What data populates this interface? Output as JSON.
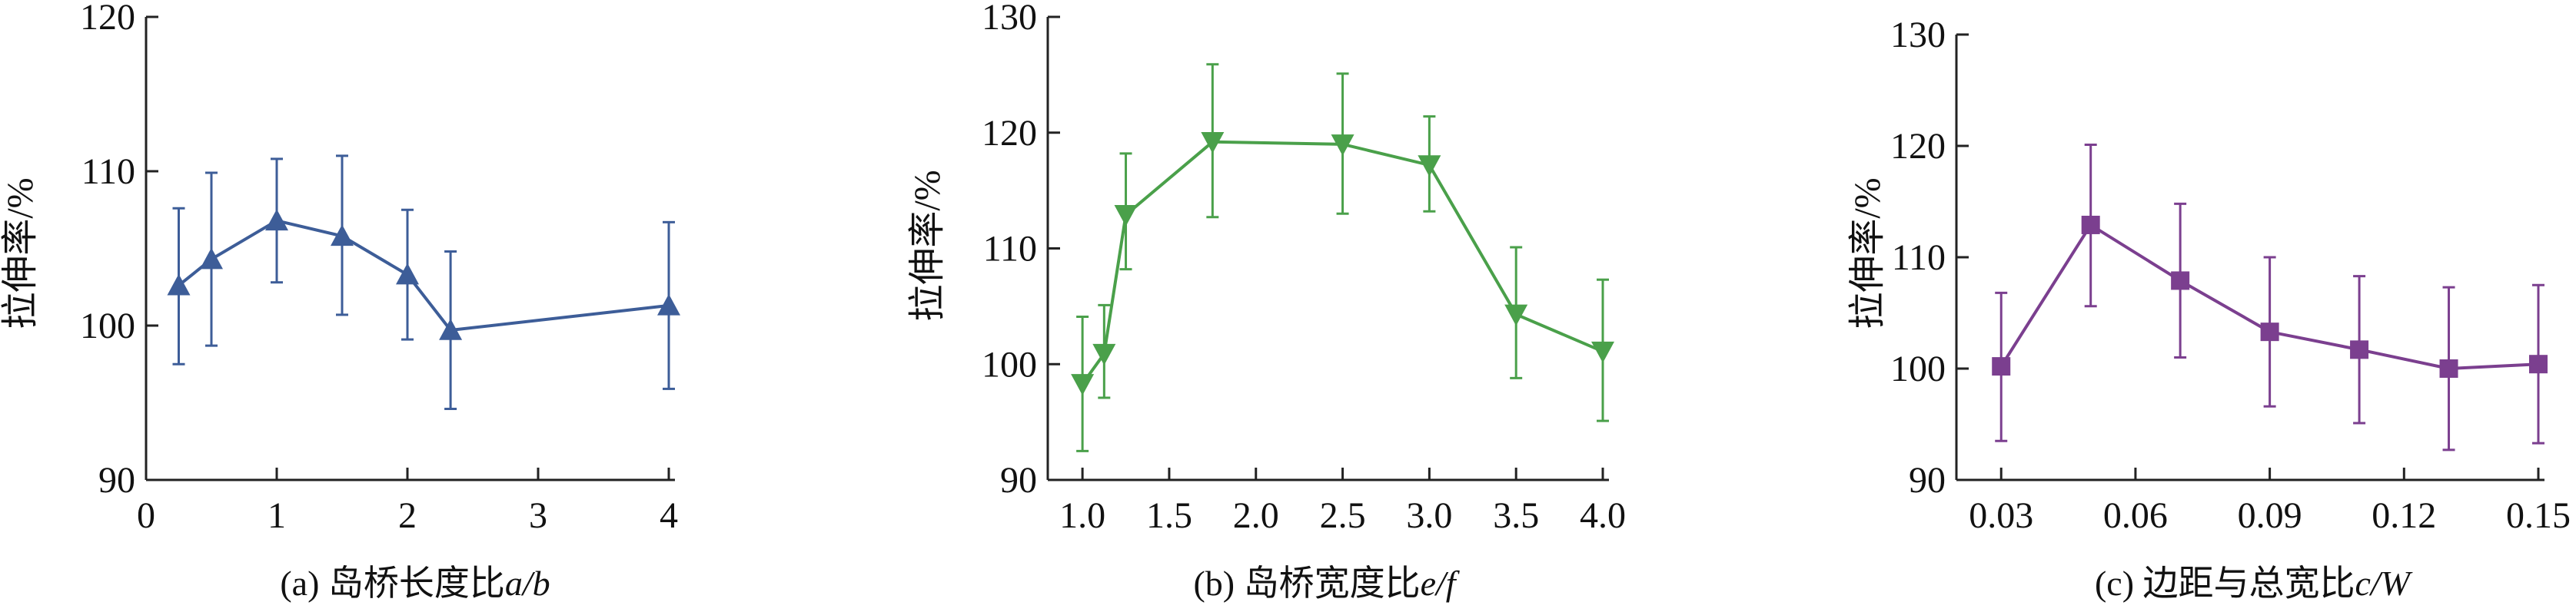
{
  "chart_data": [
    {
      "type": "line",
      "caption": "(a) 岛桥长度比",
      "caption_var": "a/b",
      "ylabel": "拉伸率/%",
      "xlabel": "",
      "xlim": [
        0,
        4
      ],
      "ylim": [
        90,
        120
      ],
      "xticks": [
        "0",
        "1",
        "2",
        "3",
        "4"
      ],
      "yticks": [
        "90",
        "100",
        "110",
        "120"
      ],
      "marker": "triangle-up",
      "color": "#3d5d98",
      "x": [
        0.25,
        0.5,
        1.0,
        1.5,
        2.0,
        2.33,
        4.0
      ],
      "y": [
        102.6,
        104.3,
        106.8,
        105.8,
        103.3,
        99.7,
        101.3
      ],
      "err_low": [
        97.5,
        98.7,
        102.8,
        100.7,
        99.1,
        94.6,
        95.9
      ],
      "err_high": [
        107.6,
        109.9,
        110.8,
        111.0,
        107.5,
        104.8,
        106.7
      ]
    },
    {
      "type": "line",
      "caption": "(b) 岛桥宽度比",
      "caption_var": "e/f",
      "ylabel": "拉伸率/%",
      "xlabel": "",
      "xlim": [
        0.8,
        4.0
      ],
      "ylim": [
        90,
        130
      ],
      "xticks": [
        "1.0",
        "1.5",
        "2.0",
        "2.5",
        "3.0",
        "3.5",
        "4.0"
      ],
      "yticks": [
        "90",
        "100",
        "110",
        "120",
        "130"
      ],
      "marker": "triangle-down",
      "color": "#4aa04a",
      "x": [
        1.0,
        1.125,
        1.25,
        1.75,
        2.5,
        3.0,
        3.5,
        4.0
      ],
      "y": [
        98.3,
        100.9,
        112.9,
        119.2,
        119.0,
        117.2,
        104.3,
        101.1
      ],
      "err_low": [
        92.5,
        97.1,
        108.2,
        112.7,
        113.0,
        113.2,
        98.8,
        95.1
      ],
      "err_high": [
        104.1,
        105.1,
        118.2,
        125.9,
        125.1,
        121.4,
        110.1,
        107.3
      ]
    },
    {
      "type": "line",
      "caption": "(c) 边距与总宽比",
      "caption_var": "c/W",
      "ylabel": "拉伸率/%",
      "xlabel": "",
      "xlim": [
        0.02,
        0.15
      ],
      "ylim": [
        90,
        130
      ],
      "xticks": [
        "0.03",
        "0.06",
        "0.09",
        "0.12",
        "0.15"
      ],
      "yticks": [
        "90",
        "100",
        "110",
        "120",
        "130"
      ],
      "marker": "square",
      "color": "#7b3f8f",
      "x": [
        0.03,
        0.05,
        0.07,
        0.09,
        0.11,
        0.13,
        0.15
      ],
      "y": [
        100.2,
        112.9,
        107.9,
        103.3,
        101.7,
        100.0,
        100.4
      ],
      "err_low": [
        93.5,
        105.6,
        101.0,
        96.6,
        95.1,
        92.7,
        93.3
      ],
      "err_high": [
        106.8,
        120.1,
        114.8,
        110.0,
        108.3,
        107.3,
        107.5
      ]
    }
  ]
}
